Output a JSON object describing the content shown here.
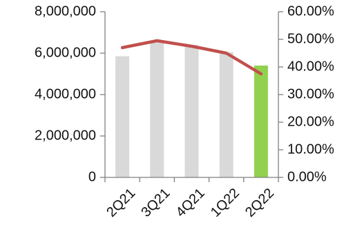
{
  "chart_data": {
    "type": "bar",
    "categories": [
      "2Q21",
      "3Q21",
      "4Q21",
      "1Q22",
      "2Q22"
    ],
    "series": [
      {
        "type": "bar",
        "axis": "left",
        "values": [
          5850000,
          6600000,
          6400000,
          6050000,
          5400000
        ],
        "colors": [
          "#d9d9d9",
          "#d9d9d9",
          "#d9d9d9",
          "#d9d9d9",
          "#92d050"
        ]
      },
      {
        "type": "line",
        "axis": "right",
        "values": [
          47.0,
          49.5,
          47.5,
          45.0,
          37.5
        ],
        "color": "#c0504d"
      }
    ],
    "y_left": {
      "min": 0,
      "max": 8000000,
      "ticks": [
        0,
        2000000,
        4000000,
        6000000,
        8000000
      ],
      "tick_labels": [
        "0",
        "2,000,000",
        "4,000,000",
        "6,000,000",
        "8,000,000"
      ]
    },
    "y_right": {
      "min": 0,
      "max": 60,
      "ticks": [
        0,
        10,
        20,
        30,
        40,
        50,
        60
      ],
      "tick_labels": [
        "0.00%",
        "10.00%",
        "20.00%",
        "30.00%",
        "40.00%",
        "50.00%",
        "60.00%"
      ]
    },
    "axis_color": "#7f7f7f",
    "grid": false,
    "legend": "none"
  }
}
